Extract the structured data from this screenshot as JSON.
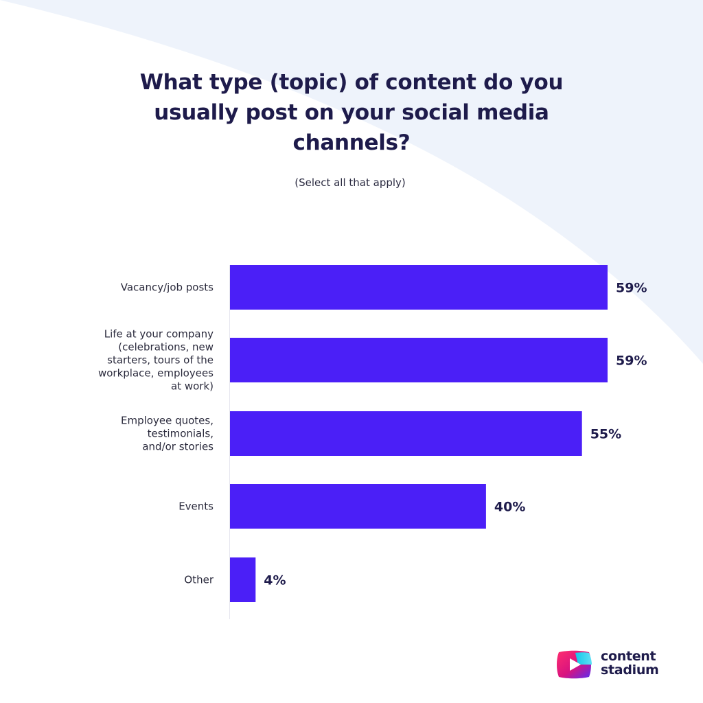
{
  "title_lines": [
    "What type (topic) of content do you",
    "usually post on your social media",
    "channels?"
  ],
  "subtitle": "(Select all that apply)",
  "colors": {
    "bar": "#4b1ff7",
    "text": "#1e1b4b",
    "background_shape": "#eef3fb"
  },
  "chart_data": {
    "type": "bar",
    "orientation": "horizontal",
    "categories": [
      [
        "Vacancy/job posts"
      ],
      [
        "Life at your company",
        "(celebrations, new",
        "starters, tours of the",
        "workplace, employees",
        "at work)"
      ],
      [
        "Employee quotes,",
        "testimonials,",
        "and/or stories"
      ],
      [
        "Events"
      ],
      [
        "Other"
      ]
    ],
    "values": [
      59,
      59,
      55,
      40,
      4
    ],
    "value_labels": [
      "59%",
      "59%",
      "55%",
      "40%",
      "4%"
    ],
    "xlim": [
      0,
      60
    ],
    "unit": "%",
    "grid": false
  },
  "logo": {
    "line1": "content",
    "line2": "stadium",
    "icon": "play-logo-icon"
  }
}
